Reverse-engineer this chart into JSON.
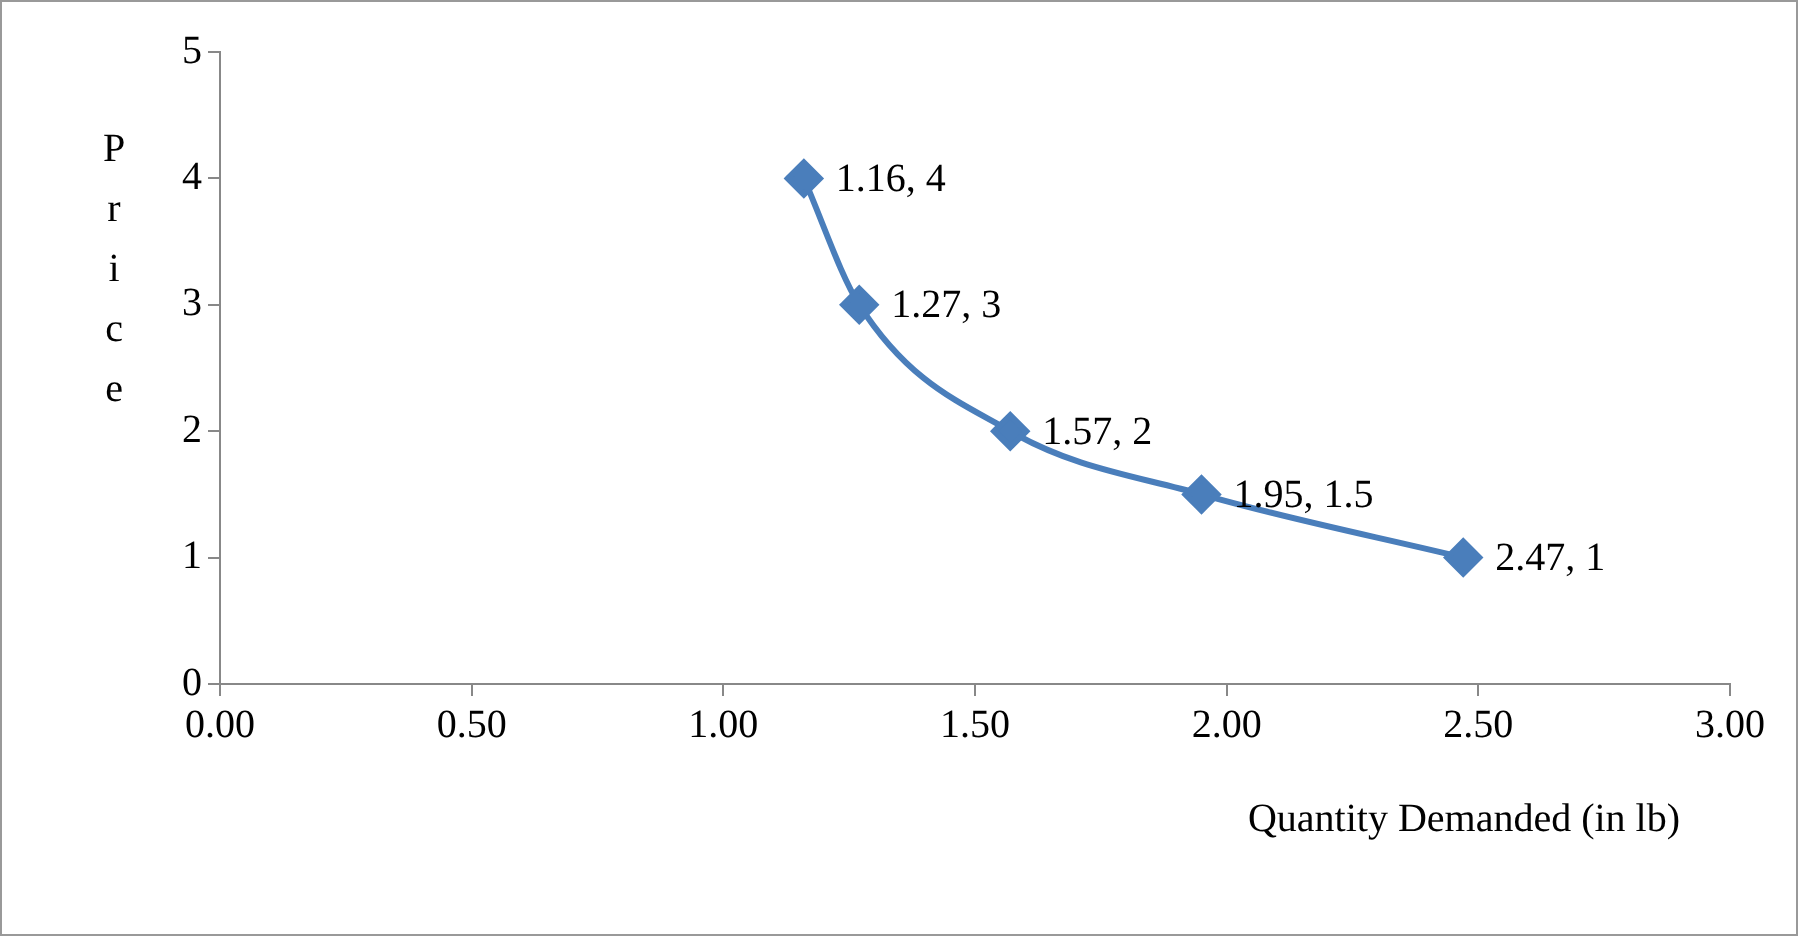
{
  "chart_data": {
    "type": "line",
    "xlabel": "Quantity Demanded (in lb)",
    "ylabel": "Price",
    "series": [
      {
        "color": "#4a7ebb",
        "x": [
          1.16,
          1.27,
          1.57,
          1.95,
          2.47
        ],
        "values": [
          4,
          3,
          2,
          1.5,
          1
        ],
        "value_labels": [
          "1.16, 4",
          "1.27, 3",
          "1.57, 2",
          "1.95, 1.5",
          "2.47, 1"
        ]
      }
    ],
    "xlim": [
      0,
      3
    ],
    "xticks": [
      {
        "value": 0,
        "label": "0.00"
      },
      {
        "value": 0.5,
        "label": "0.50"
      },
      {
        "value": 1,
        "label": "1.00"
      },
      {
        "value": 1.5,
        "label": "1.50"
      },
      {
        "value": 2,
        "label": "2.00"
      },
      {
        "value": 2.5,
        "label": "2.50"
      },
      {
        "value": 3,
        "label": "3.00"
      }
    ],
    "ylim": [
      0,
      5
    ],
    "yticks": [
      0,
      1,
      2,
      3,
      4,
      5
    ],
    "grid": false,
    "legend": false,
    "marker": "diamond",
    "line_style": "solid"
  }
}
